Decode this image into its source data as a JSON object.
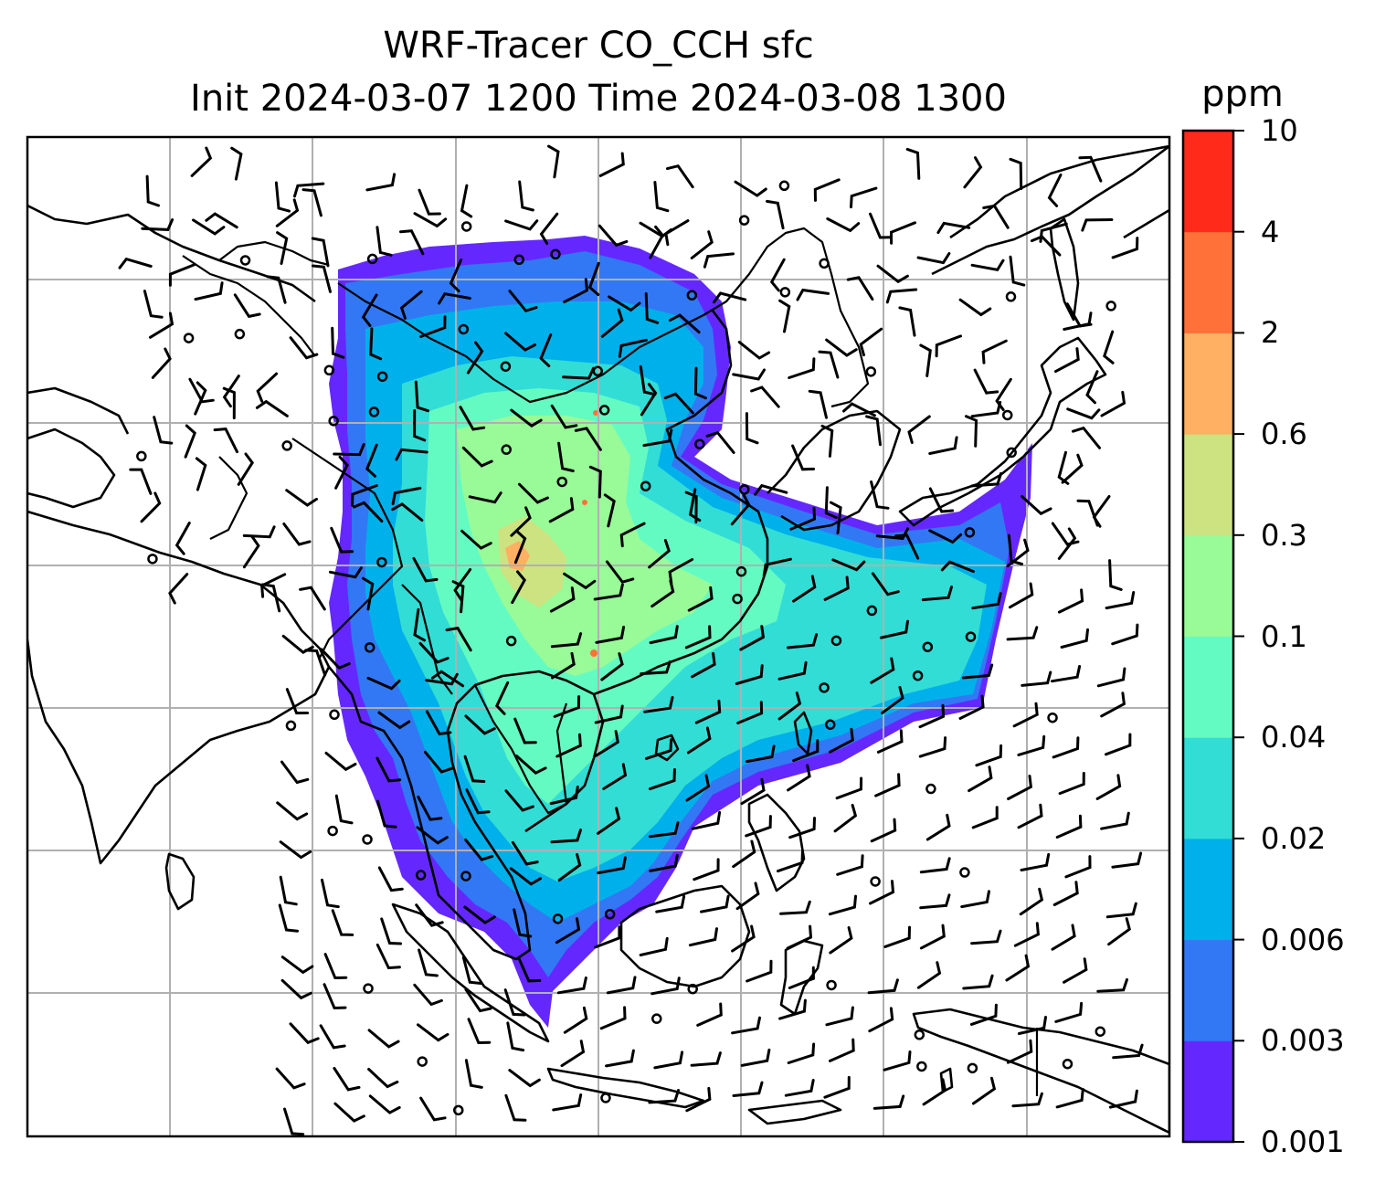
{
  "title": {
    "line1": "WRF-Tracer CO_CCH sfc",
    "line2": "Init 2024-03-07 1200 Time 2024-03-08 1300"
  },
  "colorbar": {
    "units": "ppm",
    "ticks": [
      "0.001",
      "0.003",
      "0.006",
      "0.02",
      "0.04",
      "0.1",
      "0.3",
      "0.6",
      "2",
      "4",
      "10"
    ],
    "colors": [
      "#6428ff",
      "#3278f4",
      "#00b0ea",
      "#32ddd6",
      "#64fbc2",
      "#98fb98",
      "#cde281",
      "#ffb062",
      "#ff7139",
      "#ff2a1a"
    ]
  },
  "map": {
    "features": [
      "coastlines",
      "country-borders",
      "gridlines",
      "wind-barbs",
      "co-tracer-field"
    ],
    "gridline_color": "#b0b0b0"
  }
}
